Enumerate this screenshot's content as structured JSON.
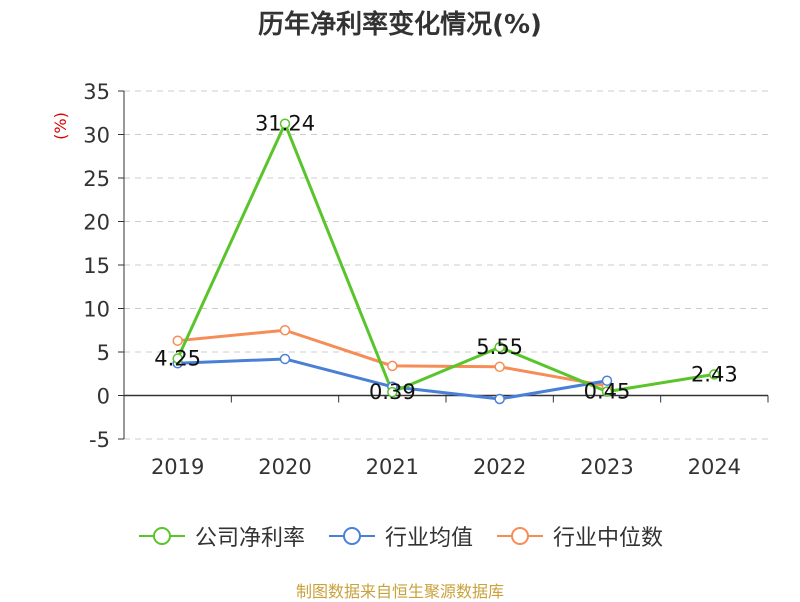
{
  "chart_data": {
    "type": "line",
    "title": "历年净利率变化情况(%)",
    "ylabel": "(%)",
    "categories": [
      "2019",
      "2020",
      "2021",
      "2022",
      "2023",
      "2024"
    ],
    "ylim": [
      -5,
      35
    ],
    "yticks": [
      -5,
      0,
      5,
      10,
      15,
      20,
      25,
      30,
      35
    ],
    "grid": true,
    "legend_position": "bottom",
    "series": [
      {
        "name": "公司净利率",
        "color": "#5ac42b",
        "values": [
          4.25,
          31.24,
          0.39,
          5.55,
          0.45,
          2.43
        ],
        "data_labels": [
          "4.25",
          "31.24",
          "0.39",
          "5.55",
          "0.45",
          "2.43"
        ]
      },
      {
        "name": "行业均值",
        "color": "#4a7fd8",
        "values": [
          3.7,
          4.2,
          1.0,
          -0.4,
          1.7,
          null
        ]
      },
      {
        "name": "行业中位数",
        "color": "#f68c56",
        "values": [
          6.3,
          7.5,
          3.4,
          3.3,
          1.1,
          null
        ]
      }
    ]
  },
  "source": "制图数据来自恒生聚源数据库",
  "colors": {
    "axis": "#333333",
    "grid": "#cccccc",
    "ylabel": "#dd0000",
    "source": "#c8a23c"
  }
}
